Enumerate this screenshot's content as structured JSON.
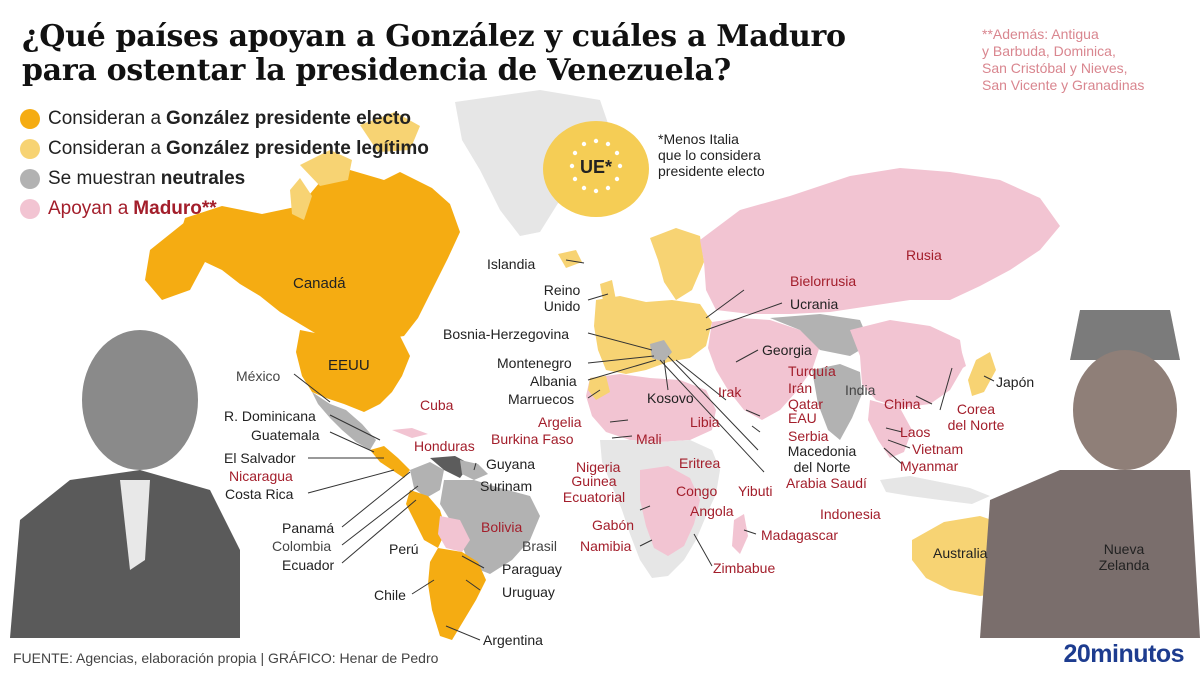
{
  "title": {
    "line1": "¿Qué países apoyan a González y cuáles a Maduro",
    "line2": "para ostentar la presidencia de Venezuela?"
  },
  "legend": [
    {
      "prefix": "Consideran a",
      "bold": "González presidente electo",
      "color": "#f5ac12"
    },
    {
      "prefix": "Consideran a",
      "bold": "González presidente legítimo",
      "color": "#f7d373"
    },
    {
      "prefix": "Se muestran",
      "bold": "neutrales",
      "color": "#b2b2b2"
    },
    {
      "prefix": "Apoyan a",
      "bold": "Maduro**",
      "color": "#f2c4d2"
    }
  ],
  "note_top": {
    "line1": "**Además: Antigua",
    "line2": "y Barbuda, Dominica,",
    "line3": "San Cristóbal y Nieves,",
    "line4": "San Vicente y Granadinas"
  },
  "ue": {
    "label": "UE*",
    "note1": "*Menos Italia",
    "note2": "que lo considera",
    "note3": "presidente electo"
  },
  "countries": {
    "canada": "Canadá",
    "eeuu": "EEUU",
    "mexico": "México",
    "rdominicana": "R. Dominicana",
    "guatemala": "Guatemala",
    "elsalvador": "El Salvador",
    "nicaragua": "Nicaragua",
    "costarica": "Costa Rica",
    "panama": "Panamá",
    "colombia": "Colombia",
    "ecuador": "Ecuador",
    "peru": "Perú",
    "chile": "Chile",
    "cuba": "Cuba",
    "honduras": "Honduras",
    "guyana": "Guyana",
    "surinam": "Surinam",
    "bolivia": "Bolivia",
    "brasil": "Brasil",
    "paraguay": "Paraguay",
    "uruguay": "Uruguay",
    "argentina": "Argentina",
    "islandia": "Islandia",
    "reino": "Reino",
    "unido": "Unido",
    "bosnia": "Bosnia-Herzegovina",
    "montenegro": "Montenegro",
    "albania": "Albania",
    "marruecos": "Marruecos",
    "kosovo": "Kosovo",
    "argelia": "Argelia",
    "burkina": "Burkina Faso",
    "mali": "Mali",
    "libia": "Libia",
    "nigeria": "Nigeria",
    "guinea": "Guinea",
    "ecuatorial": "Ecuatorial",
    "gabon": "Gabón",
    "namibia": "Namibia",
    "congo": "Congo",
    "angola": "Angola",
    "zimbabue": "Zimbabue",
    "madagascar": "Madagascar",
    "eritrea": "Eritrea",
    "yibuti": "Yibuti",
    "bielorrusia": "Bielorrusia",
    "ucrania": "Ucrania",
    "russia": "Rusia",
    "georgia": "Georgia",
    "turquia": "Turquía",
    "iran": "Irán",
    "irak": "Irak",
    "qatar": "Qatar",
    "eau": "EAU",
    "serbia": "Serbia",
    "macedonia1": "Macedonia",
    "macedonia2": "del Norte",
    "arabia": "Arabia Saudí",
    "india": "India",
    "china": "China",
    "laos": "Laos",
    "vietnam": "Vietnam",
    "myanmar": "Myanmar",
    "corea1": "Corea",
    "corea2": "del Norte",
    "japon": "Japón",
    "indonesia": "Indonesia",
    "australia": "Australia",
    "nz1": "Nueva",
    "nz2": "Zelanda"
  },
  "footer": "FUENTE: Agencias, elaboración propia  |  GRÁFICO: Henar de Pedro",
  "brand": "20minutos",
  "colors": {
    "electo": "#f5ac12",
    "legitimo": "#f7d373",
    "neutral": "#b2b2b2",
    "maduro": "#f2c4d2",
    "nodata": "#e6e6e6",
    "label_red": "#a31e2b"
  },
  "icons": {
    "eu_stars": "star-ring-icon"
  }
}
